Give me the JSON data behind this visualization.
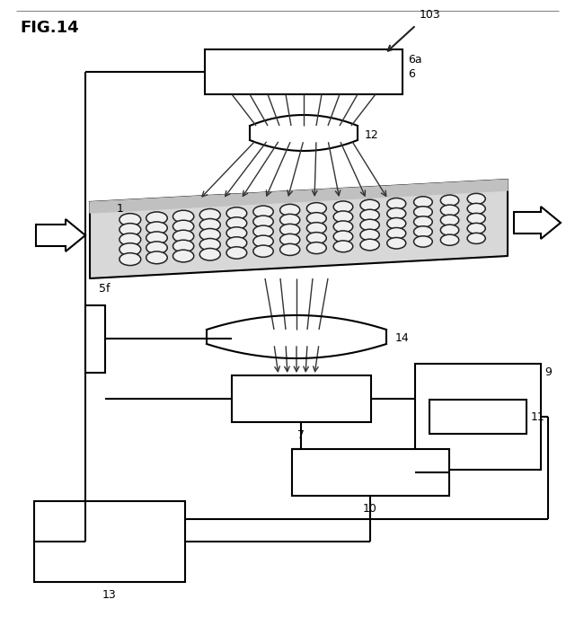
{
  "bg_color": "#ffffff",
  "line_color": "#000000",
  "fig_width": 6.4,
  "fig_height": 6.87,
  "labels": {
    "fig_title": "FIG.14",
    "label_103": "103",
    "label_6a": "6a",
    "label_6": "6",
    "label_12": "12",
    "label_1": "1",
    "label_5f": "5f",
    "label_14": "14",
    "label_7": "7",
    "label_9": "9",
    "label_11": "11",
    "label_10": "10",
    "label_13": "13"
  }
}
